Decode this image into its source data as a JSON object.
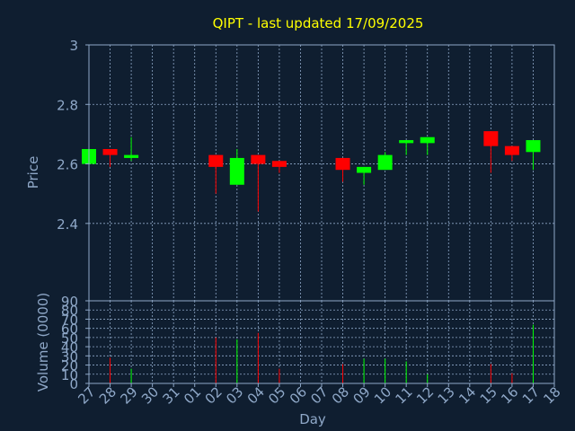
{
  "chart_data": {
    "type": "candlestick",
    "title": "QIPT - last updated 17/09/2025",
    "xlabel": "Day",
    "ylabel_price": "Price",
    "ylabel_volume": "Volume (0000)",
    "x_ticks": [
      "27",
      "28",
      "29",
      "30",
      "31",
      "01",
      "02",
      "03",
      "04",
      "05",
      "06",
      "07",
      "08",
      "09",
      "10",
      "11",
      "12",
      "13",
      "14",
      "15",
      "16",
      "17",
      "18"
    ],
    "price_ticks": [
      "2.4",
      "2.6",
      "2.8",
      "3"
    ],
    "price_ylim": [
      2.14,
      3.0
    ],
    "volume_ticks": [
      "0",
      "10",
      "20",
      "30",
      "40",
      "50",
      "60",
      "70",
      "80",
      "90"
    ],
    "volume_ylim": [
      0,
      90
    ],
    "grid": true,
    "colors": {
      "up": "#00ff00",
      "down": "#ff0000",
      "background": "#0f1e30",
      "title": "#ffff00",
      "axis_text": "#8fa8c8",
      "frame": "#8fa8c8",
      "grid": "#8fa8c8"
    },
    "candles": [
      {
        "day": "27",
        "open": 2.6,
        "close": 2.65,
        "high": 2.65,
        "low": 2.6,
        "volume": 0
      },
      {
        "day": "28",
        "open": 2.65,
        "close": 2.63,
        "high": 2.65,
        "low": 2.59,
        "volume": 28
      },
      {
        "day": "29",
        "open": 2.62,
        "close": 2.63,
        "high": 2.69,
        "low": 2.61,
        "volume": 16
      },
      {
        "day": "02",
        "open": 2.63,
        "close": 2.59,
        "high": 2.63,
        "low": 2.5,
        "volume": 50
      },
      {
        "day": "03",
        "open": 2.53,
        "close": 2.62,
        "high": 2.65,
        "low": 2.53,
        "volume": 48
      },
      {
        "day": "04",
        "open": 2.63,
        "close": 2.6,
        "high": 2.63,
        "low": 2.44,
        "volume": 55
      },
      {
        "day": "05",
        "open": 2.61,
        "close": 2.59,
        "high": 2.61,
        "low": 2.57,
        "volume": 16
      },
      {
        "day": "08",
        "open": 2.62,
        "close": 2.58,
        "high": 2.62,
        "low": 2.54,
        "volume": 21
      },
      {
        "day": "09",
        "open": 2.57,
        "close": 2.59,
        "high": 2.59,
        "low": 2.53,
        "volume": 27
      },
      {
        "day": "10",
        "open": 2.58,
        "close": 2.63,
        "high": 2.64,
        "low": 2.58,
        "volume": 27
      },
      {
        "day": "11",
        "open": 2.67,
        "close": 2.68,
        "high": 2.68,
        "low": 2.63,
        "volume": 24
      },
      {
        "day": "12",
        "open": 2.67,
        "close": 2.69,
        "high": 2.69,
        "low": 2.63,
        "volume": 10
      },
      {
        "day": "15",
        "open": 2.71,
        "close": 2.66,
        "high": 2.71,
        "low": 2.57,
        "volume": 21
      },
      {
        "day": "16",
        "open": 2.66,
        "close": 2.63,
        "high": 2.66,
        "low": 2.61,
        "volume": 11
      },
      {
        "day": "17",
        "open": 2.64,
        "close": 2.68,
        "high": 2.68,
        "low": 2.58,
        "volume": 64
      }
    ]
  }
}
